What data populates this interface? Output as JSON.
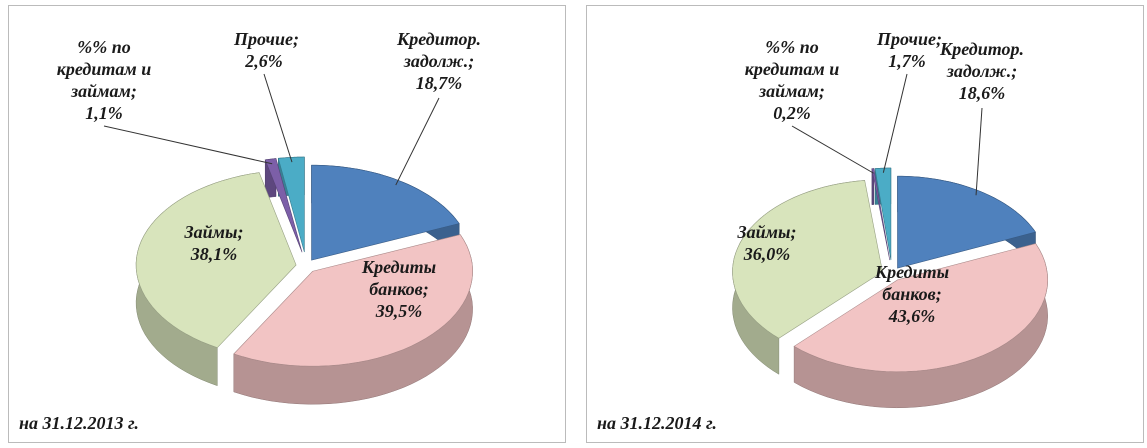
{
  "chart_data": [
    {
      "type": "pie",
      "title": "на 31.12.2013 г.",
      "categories": [
        "Кредитор. задолж.;",
        "Кредиты банков;",
        "Займы;",
        "%% по кредитам и займам;",
        "Прочие;"
      ],
      "values": [
        18.7,
        39.5,
        38.1,
        1.1,
        2.6
      ],
      "value_labels": [
        "18,7%",
        "39,5%",
        "38,1%",
        "1,1%",
        "2,6%"
      ],
      "colors": [
        "#4f81bd",
        "#f2c4c4",
        "#d8e4bc",
        "#7c5fa8",
        "#4bacc6"
      ]
    },
    {
      "type": "pie",
      "title": "на 31.12.2014 г.",
      "categories": [
        "Кредитор. задолж.;",
        "Кредиты банков;",
        "Займы;",
        "%% по кредитам и займам;",
        "Прочие;"
      ],
      "values": [
        18.6,
        43.6,
        36.0,
        0.2,
        1.7
      ],
      "value_labels": [
        "18,6%",
        "43,6%",
        "36,0%",
        "0,2%",
        "1,7%"
      ],
      "colors": [
        "#4f81bd",
        "#f2c4c4",
        "#d8e4bc",
        "#7c5fa8",
        "#4bacc6"
      ]
    }
  ]
}
